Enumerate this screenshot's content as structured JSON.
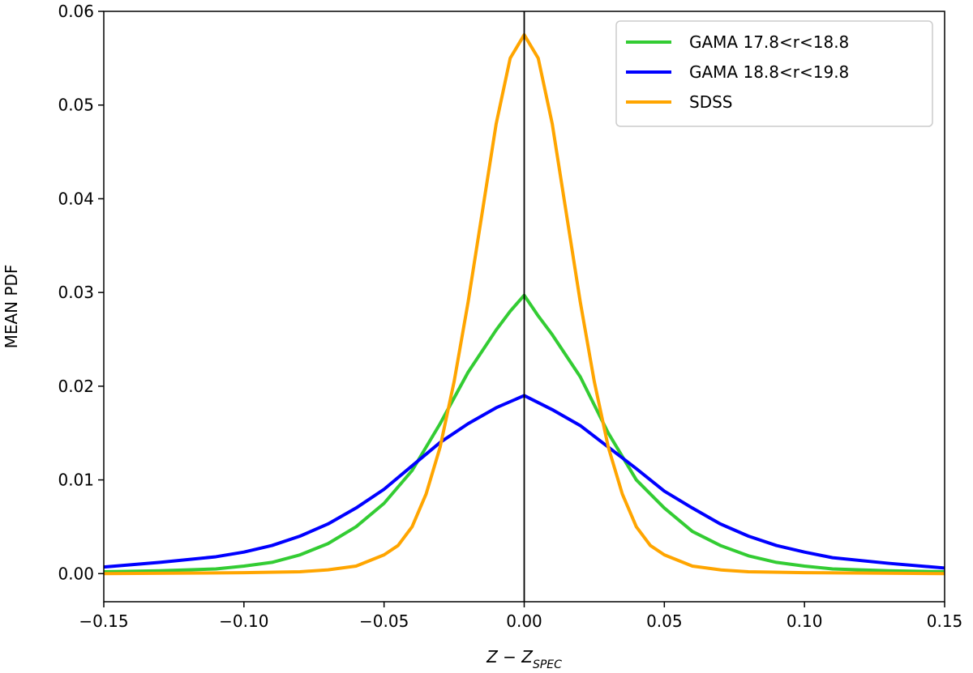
{
  "chart_data": {
    "type": "line",
    "title": "",
    "xlabel": "z − z_SPEC",
    "xlabel_main": "Z − Z",
    "xlabel_sub": "SPEC",
    "ylabel": "MEAN PDF",
    "xlim": [
      -0.15,
      0.15
    ],
    "ylim": [
      -0.003,
      0.06
    ],
    "xticks": [
      -0.15,
      -0.1,
      -0.05,
      0.0,
      0.05,
      0.1,
      0.15
    ],
    "xtick_labels": [
      "−0.15",
      "−0.10",
      "−0.05",
      "0.00",
      "0.05",
      "0.10",
      "0.15"
    ],
    "yticks": [
      0.0,
      0.01,
      0.02,
      0.03,
      0.04,
      0.05,
      0.06
    ],
    "ytick_labels": [
      "0.00",
      "0.01",
      "0.02",
      "0.03",
      "0.04",
      "0.05",
      "0.06"
    ],
    "vline_x": 0.0,
    "grid": false,
    "legend_position": "top-right",
    "series": [
      {
        "name": "GAMA 17.8<r<18.8",
        "color": "#33cc33",
        "x": [
          -0.15,
          -0.13,
          -0.11,
          -0.1,
          -0.09,
          -0.08,
          -0.07,
          -0.06,
          -0.05,
          -0.04,
          -0.03,
          -0.02,
          -0.01,
          -0.005,
          0.0,
          0.005,
          0.01,
          0.02,
          0.03,
          0.04,
          0.05,
          0.06,
          0.07,
          0.08,
          0.09,
          0.1,
          0.11,
          0.13,
          0.15
        ],
        "y": [
          0.0002,
          0.0003,
          0.0005,
          0.0008,
          0.0012,
          0.002,
          0.0032,
          0.005,
          0.0075,
          0.011,
          0.016,
          0.0215,
          0.026,
          0.028,
          0.0297,
          0.0275,
          0.0255,
          0.021,
          0.015,
          0.01,
          0.007,
          0.0045,
          0.003,
          0.0019,
          0.0012,
          0.0008,
          0.0005,
          0.0003,
          0.0002
        ]
      },
      {
        "name": "GAMA 18.8<r<19.8",
        "color": "#0000ff",
        "x": [
          -0.15,
          -0.13,
          -0.11,
          -0.1,
          -0.09,
          -0.08,
          -0.07,
          -0.06,
          -0.05,
          -0.04,
          -0.03,
          -0.02,
          -0.01,
          0.0,
          0.01,
          0.02,
          0.03,
          0.04,
          0.05,
          0.06,
          0.07,
          0.08,
          0.09,
          0.1,
          0.11,
          0.13,
          0.15
        ],
        "y": [
          0.0007,
          0.0012,
          0.0018,
          0.0023,
          0.003,
          0.004,
          0.0053,
          0.007,
          0.009,
          0.0115,
          0.014,
          0.016,
          0.0177,
          0.019,
          0.0175,
          0.0158,
          0.0135,
          0.0112,
          0.0088,
          0.007,
          0.0053,
          0.004,
          0.003,
          0.0023,
          0.0017,
          0.0011,
          0.0006
        ]
      },
      {
        "name": "SDSS",
        "color": "#ffa500",
        "x": [
          -0.15,
          -0.1,
          -0.08,
          -0.07,
          -0.06,
          -0.05,
          -0.045,
          -0.04,
          -0.035,
          -0.03,
          -0.025,
          -0.02,
          -0.015,
          -0.01,
          -0.005,
          0.0,
          0.005,
          0.01,
          0.015,
          0.02,
          0.025,
          0.03,
          0.035,
          0.04,
          0.045,
          0.05,
          0.06,
          0.07,
          0.08,
          0.1,
          0.15
        ],
        "y": [
          0.0,
          0.0001,
          0.0002,
          0.0004,
          0.0008,
          0.002,
          0.003,
          0.005,
          0.0085,
          0.0135,
          0.0205,
          0.029,
          0.0385,
          0.048,
          0.055,
          0.0575,
          0.055,
          0.048,
          0.0385,
          0.029,
          0.0205,
          0.0135,
          0.0085,
          0.005,
          0.003,
          0.002,
          0.0008,
          0.0004,
          0.0002,
          0.0001,
          0.0
        ]
      }
    ]
  }
}
